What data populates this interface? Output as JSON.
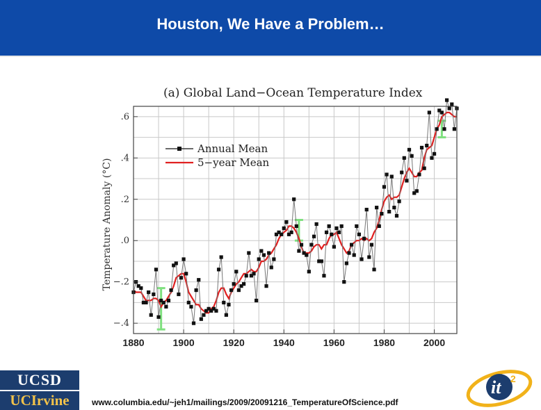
{
  "header": {
    "title": "Houston, We Have a Problem…"
  },
  "footer": {
    "logo_ucsd": "UCSD",
    "logo_uci": "UCIrvine",
    "url": "www.columbia.edu/~jeh1/mailings/2009/20091216_TemperatureOfScience.pdf",
    "logo_it2_text": "it",
    "logo_it2_sup": "2"
  },
  "colors": {
    "header_bg": "#0e4aa8",
    "annual": "#111111",
    "five_year": "#e02020",
    "error_bar": "#7fe07f"
  },
  "chart_data": {
    "type": "line",
    "title": "(a) Global Land−Ocean Temperature Index",
    "xlabel": "",
    "ylabel": "Temperature Anomaly (°C)",
    "xlim": [
      1880,
      2009
    ],
    "ylim": [
      -0.45,
      0.65
    ],
    "xticks": [
      1880,
      1900,
      1920,
      1940,
      1960,
      1980,
      2000
    ],
    "xtick_labels": [
      "1880",
      "1900",
      "1920",
      "1940",
      "1960",
      "1980",
      "2000"
    ],
    "yticks": [
      -0.4,
      -0.2,
      0.0,
      0.2,
      0.4,
      0.6
    ],
    "ytick_labels": [
      "−.4",
      "−.2",
      ".0",
      ".2",
      ".4",
      ".6"
    ],
    "legend_position": "upper-left",
    "x": [
      1880,
      1881,
      1882,
      1883,
      1884,
      1885,
      1886,
      1887,
      1888,
      1889,
      1890,
      1891,
      1892,
      1893,
      1894,
      1895,
      1896,
      1897,
      1898,
      1899,
      1900,
      1901,
      1902,
      1903,
      1904,
      1905,
      1906,
      1907,
      1908,
      1909,
      1910,
      1911,
      1912,
      1913,
      1914,
      1915,
      1916,
      1917,
      1918,
      1919,
      1920,
      1921,
      1922,
      1923,
      1924,
      1925,
      1926,
      1927,
      1928,
      1929,
      1930,
      1931,
      1932,
      1933,
      1934,
      1935,
      1936,
      1937,
      1938,
      1939,
      1940,
      1941,
      1942,
      1943,
      1944,
      1945,
      1946,
      1947,
      1948,
      1949,
      1950,
      1951,
      1952,
      1953,
      1954,
      1955,
      1956,
      1957,
      1958,
      1959,
      1960,
      1961,
      1962,
      1963,
      1964,
      1965,
      1966,
      1967,
      1968,
      1969,
      1970,
      1971,
      1972,
      1973,
      1974,
      1975,
      1976,
      1977,
      1978,
      1979,
      1980,
      1981,
      1982,
      1983,
      1984,
      1985,
      1986,
      1987,
      1988,
      1989,
      1990,
      1991,
      1992,
      1993,
      1994,
      1995,
      1996,
      1997,
      1998,
      1999,
      2000,
      2001,
      2002,
      2003,
      2004,
      2005,
      2006,
      2007,
      2008,
      2009
    ],
    "series": [
      {
        "name": "Annual Mean",
        "values": [
          -0.25,
          -0.2,
          -0.22,
          -0.23,
          -0.3,
          -0.3,
          -0.25,
          -0.36,
          -0.26,
          -0.14,
          -0.37,
          -0.29,
          -0.3,
          -0.32,
          -0.29,
          -0.24,
          -0.12,
          -0.11,
          -0.26,
          -0.18,
          -0.09,
          -0.16,
          -0.3,
          -0.32,
          -0.4,
          -0.24,
          -0.19,
          -0.38,
          -0.36,
          -0.34,
          -0.33,
          -0.34,
          -0.33,
          -0.34,
          -0.14,
          -0.08,
          -0.3,
          -0.36,
          -0.31,
          -0.24,
          -0.21,
          -0.15,
          -0.24,
          -0.22,
          -0.21,
          -0.17,
          -0.06,
          -0.17,
          -0.16,
          -0.29,
          -0.09,
          -0.05,
          -0.07,
          -0.22,
          -0.06,
          -0.13,
          -0.09,
          0.03,
          0.04,
          0.03,
          0.06,
          0.09,
          0.03,
          0.04,
          0.2,
          0.07,
          -0.05,
          -0.02,
          -0.06,
          -0.07,
          -0.15,
          -0.02,
          0.02,
          0.08,
          -0.1,
          -0.1,
          -0.17,
          0.04,
          0.07,
          0.03,
          -0.03,
          0.06,
          0.04,
          0.07,
          -0.2,
          -0.11,
          -0.06,
          -0.02,
          -0.07,
          0.07,
          0.03,
          -0.09,
          0.01,
          0.15,
          -0.08,
          -0.02,
          -0.14,
          0.16,
          0.07,
          0.13,
          0.26,
          0.32,
          0.14,
          0.31,
          0.16,
          0.12,
          0.19,
          0.33,
          0.4,
          0.29,
          0.44,
          0.41,
          0.23,
          0.24,
          0.32,
          0.45,
          0.35,
          0.46,
          0.62,
          0.4,
          0.42,
          0.54,
          0.63,
          0.62,
          0.54,
          0.68,
          0.64,
          0.66,
          0.54,
          0.64
        ]
      },
      {
        "name": "5−year Mean",
        "values": [
          -0.24,
          -0.25,
          -0.25,
          -0.25,
          -0.27,
          -0.29,
          -0.29,
          -0.29,
          -0.28,
          -0.28,
          -0.29,
          -0.32,
          -0.3,
          -0.29,
          -0.27,
          -0.25,
          -0.22,
          -0.18,
          -0.17,
          -0.16,
          -0.16,
          -0.2,
          -0.25,
          -0.27,
          -0.29,
          -0.31,
          -0.31,
          -0.33,
          -0.34,
          -0.35,
          -0.35,
          -0.33,
          -0.32,
          -0.29,
          -0.25,
          -0.23,
          -0.23,
          -0.26,
          -0.28,
          -0.25,
          -0.23,
          -0.21,
          -0.2,
          -0.18,
          -0.16,
          -0.16,
          -0.15,
          -0.14,
          -0.15,
          -0.15,
          -0.13,
          -0.1,
          -0.1,
          -0.09,
          -0.07,
          -0.06,
          -0.04,
          -0.02,
          0.01,
          0.03,
          0.04,
          0.05,
          0.07,
          0.07,
          0.06,
          0.04,
          0.01,
          -0.03,
          -0.06,
          -0.06,
          -0.06,
          -0.05,
          -0.03,
          -0.02,
          -0.02,
          -0.04,
          -0.02,
          -0.02,
          0.01,
          0.03,
          0.03,
          0.04,
          0.01,
          -0.02,
          -0.04,
          -0.06,
          -0.05,
          -0.02,
          -0.01,
          0.0,
          0.0,
          0.01,
          0.0,
          0.01,
          0.0,
          0.01,
          0.04,
          0.06,
          0.1,
          0.15,
          0.19,
          0.21,
          0.22,
          0.2,
          0.21,
          0.21,
          0.22,
          0.26,
          0.3,
          0.33,
          0.35,
          0.33,
          0.31,
          0.31,
          0.33,
          0.34,
          0.4,
          0.44,
          0.45,
          0.46,
          0.5,
          0.54,
          0.56,
          0.6,
          0.61,
          0.62,
          0.62,
          0.61,
          0.6,
          0.6
        ]
      }
    ],
    "error_bars": [
      {
        "x": 1891,
        "y": -0.33,
        "half_width": 0.1
      },
      {
        "x": 1946,
        "y": 0.05,
        "half_width": 0.05
      },
      {
        "x": 2003,
        "y": 0.54,
        "half_width": 0.04
      }
    ]
  }
}
